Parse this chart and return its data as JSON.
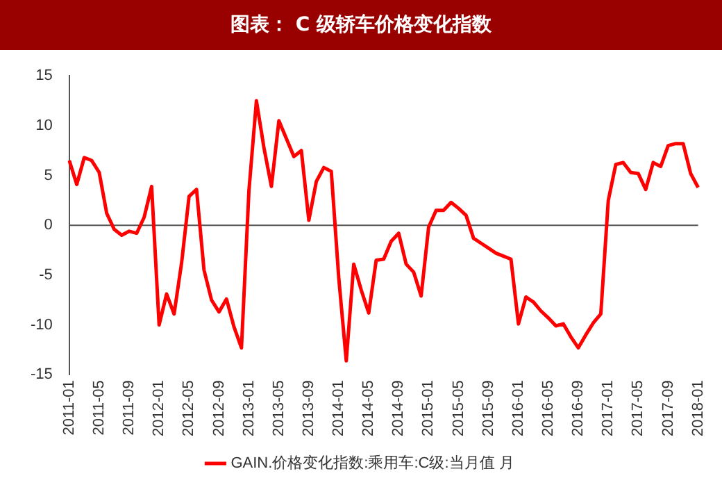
{
  "chart_data": {
    "type": "line",
    "title": "图表： C 级轿车价格变化指数",
    "categories": [
      "2011-01",
      null,
      null,
      null,
      "2011-05",
      null,
      null,
      null,
      "2011-09",
      null,
      null,
      null,
      "2012-01",
      null,
      null,
      null,
      "2012-05",
      null,
      null,
      null,
      "2012-09",
      null,
      null,
      null,
      "2013-01",
      null,
      null,
      null,
      "2013-05",
      null,
      null,
      null,
      "2013-09",
      null,
      null,
      null,
      "2014-01",
      null,
      null,
      null,
      "2014-05",
      null,
      null,
      null,
      "2014-09",
      null,
      null,
      null,
      "2015-01",
      null,
      null,
      null,
      "2015-05",
      null,
      null,
      null,
      "2015-09",
      null,
      null,
      null,
      "2016-01",
      null,
      null,
      null,
      "2016-05",
      null,
      null,
      null,
      "2016-09",
      null,
      null,
      null,
      "2017-01",
      null,
      null,
      null,
      "2017-05",
      null,
      null,
      null,
      "2017-09",
      null,
      null,
      null,
      "2018-01"
    ],
    "series": [
      {
        "name": "GAIN.价格变化指数:乘用车:C级:当月值 月",
        "color": "#ff0000",
        "values": [
          6.5,
          4.1,
          6.8,
          6.5,
          5.3,
          1.2,
          -0.4,
          -1.0,
          -0.6,
          -0.8,
          0.8,
          3.9,
          -10,
          -6.9,
          -8.9,
          -3.8,
          2.9,
          3.6,
          -4.5,
          -7.5,
          -8.7,
          -7.4,
          -10.2,
          -12.3,
          3.5,
          12.5,
          7.8,
          3.9,
          10.5,
          8.7,
          6.9,
          7.5,
          0.5,
          4.4,
          5.8,
          5.4,
          -5.3,
          -13.6,
          -3.9,
          -6.5,
          -8.8,
          -3.5,
          -3.4,
          -1.6,
          -0.8,
          -3.9,
          -4.7,
          -7.1,
          -0.2,
          1.5,
          1.5,
          2.3,
          1.7,
          1.0,
          -1.3,
          -1.8,
          -2.3,
          -2.8,
          -3.1,
          -3.4,
          -9.9,
          -7.2,
          -7.7,
          -8.6,
          -9.3,
          -10.1,
          -9.9,
          -11.2,
          -12.3,
          -11.0,
          -9.8,
          -8.9,
          2.5,
          6.1,
          6.3,
          5.3,
          5.2,
          3.6,
          6.3,
          5.9,
          8.0,
          8.2,
          8.2,
          5.2,
          3.8
        ]
      }
    ],
    "ylim": [
      -15,
      15
    ],
    "yticks": [
      -15,
      -10,
      -5,
      0,
      5,
      10,
      15
    ],
    "ref_lines": [
      {
        "axis": "y",
        "value": 0,
        "color": "#555555"
      }
    ],
    "grid": false,
    "legend": "bottom",
    "marker": "none",
    "line_style": "solid"
  }
}
